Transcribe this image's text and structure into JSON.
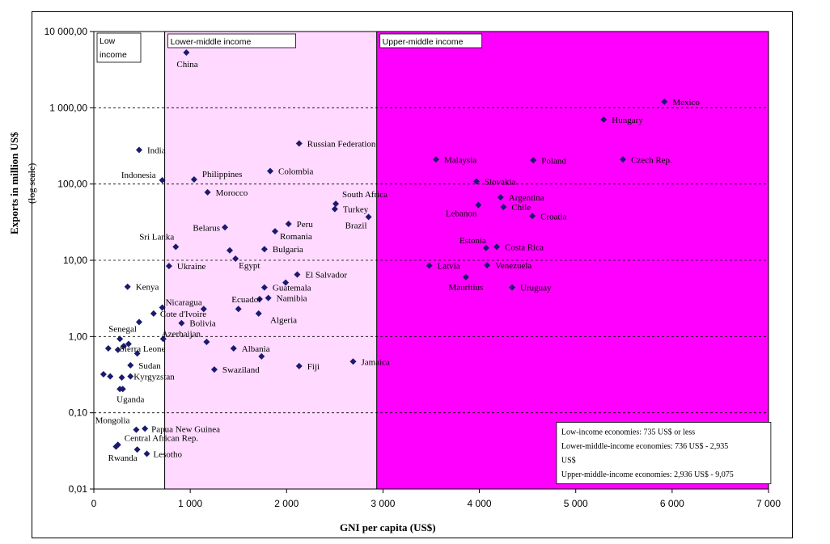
{
  "chart_data": {
    "type": "scatter",
    "title": "",
    "xlabel": "GNI per capita (US$)",
    "ylabel": "Exports in million US$",
    "ylabel_sub": "(log scale)",
    "xlim": [
      0,
      7000
    ],
    "ylim": [
      0.01,
      10000
    ],
    "y_scale": "log",
    "x_ticks": [
      "0",
      "1 000",
      "2 000",
      "3 000",
      "4 000",
      "5 000",
      "6 000",
      "7 000"
    ],
    "y_ticks": [
      "0,01",
      "0,10",
      "1,00",
      "10,00",
      "100,00",
      "1 000,00",
      "10 000,00"
    ],
    "grid": "horizontal dashed",
    "marker_color": "#1a1a6e",
    "regions": [
      {
        "label": "Low income",
        "x0": 0,
        "x1": 735,
        "color": "#ffffff"
      },
      {
        "label": "Lower-middle income",
        "x0": 735,
        "x1": 2935,
        "color": "#ffd9ff"
      },
      {
        "label": "Upper-middle income",
        "x0": 2935,
        "x1": 7000,
        "color": "#ff00ff"
      }
    ],
    "notes": [
      "Low-income economies: 735 US$ or less",
      "Lower-middle-income economies: 736 US$ - 2,935",
      "US$",
      "Upper-middle-income economies: 2,936 US$ - 9,075"
    ],
    "points": [
      {
        "label": "China",
        "x": 960,
        "y": 5300
      },
      {
        "label": "Mexico",
        "x": 5920,
        "y": 1200
      },
      {
        "label": "Hungary",
        "x": 5290,
        "y": 700
      },
      {
        "label": "Russian Federation",
        "x": 2130,
        "y": 340
      },
      {
        "label": "India",
        "x": 470,
        "y": 280
      },
      {
        "label": "Malaysia",
        "x": 3550,
        "y": 210
      },
      {
        "label": "Poland",
        "x": 4560,
        "y": 205
      },
      {
        "label": "Czech Rep.",
        "x": 5490,
        "y": 210
      },
      {
        "label": "Colombia",
        "x": 1830,
        "y": 148
      },
      {
        "label": "Philippines",
        "x": 1040,
        "y": 115
      },
      {
        "label": "Indonesia",
        "x": 710,
        "y": 112
      },
      {
        "label": "Slovakia",
        "x": 3970,
        "y": 108
      },
      {
        "label": "Morocco",
        "x": 1180,
        "y": 78
      },
      {
        "label": "Argentina",
        "x": 4220,
        "y": 67
      },
      {
        "label": "South Africa",
        "x": 2510,
        "y": 55
      },
      {
        "label": "Lebanon",
        "x": 3990,
        "y": 53
      },
      {
        "label": "Chile",
        "x": 4250,
        "y": 50
      },
      {
        "label": "Turkey",
        "x": 2500,
        "y": 47
      },
      {
        "label": "Brazil",
        "x": 2850,
        "y": 37
      },
      {
        "label": "Croatia",
        "x": 4550,
        "y": 38
      },
      {
        "label": "Peru",
        "x": 2020,
        "y": 30
      },
      {
        "label": "Belarus",
        "x": 1360,
        "y": 27
      },
      {
        "label": "Romania",
        "x": 1880,
        "y": 24
      },
      {
        "label": "Sri Lanka",
        "x": 850,
        "y": 15
      },
      {
        "label": "Bulgaria",
        "x": 1770,
        "y": 14
      },
      {
        "label": "Estonia",
        "x": 4070,
        "y": 14.5
      },
      {
        "label": "Costa Rica",
        "x": 4180,
        "y": 15
      },
      {
        "label": "",
        "x": 1410,
        "y": 13.5
      },
      {
        "label": "Egypt",
        "x": 1470,
        "y": 10.5
      },
      {
        "label": "Ukraine",
        "x": 780,
        "y": 8.4
      },
      {
        "label": "Latvia",
        "x": 3480,
        "y": 8.5
      },
      {
        "label": "Venezuela",
        "x": 4080,
        "y": 8.6
      },
      {
        "label": "El Salvador",
        "x": 2110,
        "y": 6.5
      },
      {
        "label": "Mauritius",
        "x": 3860,
        "y": 6.0
      },
      {
        "label": "",
        "x": 1990,
        "y": 5.1
      },
      {
        "label": "Kenya",
        "x": 350,
        "y": 4.5
      },
      {
        "label": "Guatemala",
        "x": 1770,
        "y": 4.4
      },
      {
        "label": "Uruguay",
        "x": 4340,
        "y": 4.4
      },
      {
        "label": "Ecuador",
        "x": 1720,
        "y": 3.1
      },
      {
        "label": "Namibia",
        "x": 1810,
        "y": 3.2
      },
      {
        "label": "Nicaragua",
        "x": 710,
        "y": 2.4
      },
      {
        "label": "",
        "x": 1140,
        "y": 2.3
      },
      {
        "label": "",
        "x": 1500,
        "y": 2.3
      },
      {
        "label": "Cote d'Ivoire",
        "x": 620,
        "y": 2.0
      },
      {
        "label": "",
        "x": 1710,
        "y": 2.0
      },
      {
        "label": "Bolivia",
        "x": 910,
        "y": 1.5
      },
      {
        "label": "",
        "x": 470,
        "y": 1.55
      },
      {
        "label": "Azerbaijan",
        "x": 720,
        "y": 0.93
      },
      {
        "label": "",
        "x": 1170,
        "y": 0.85
      },
      {
        "label": "Senegal",
        "x": 270,
        "y": 0.93
      },
      {
        "label": "",
        "x": 360,
        "y": 0.8
      },
      {
        "label": "Sierra Leone",
        "x": 150,
        "y": 0.7
      },
      {
        "label": "",
        "x": 250,
        "y": 0.67
      },
      {
        "label": "",
        "x": 310,
        "y": 0.75
      },
      {
        "label": "",
        "x": 450,
        "y": 0.6
      },
      {
        "label": "Albania",
        "x": 1450,
        "y": 0.7
      },
      {
        "label": "",
        "x": 1740,
        "y": 0.55
      },
      {
        "label": "Sudan",
        "x": 380,
        "y": 0.42
      },
      {
        "label": "Jamaica",
        "x": 2690,
        "y": 0.47
      },
      {
        "label": "Fiji",
        "x": 2130,
        "y": 0.41
      },
      {
        "label": "Swaziland",
        "x": 1250,
        "y": 0.37
      },
      {
        "label": "",
        "x": 100,
        "y": 0.32
      },
      {
        "label": "",
        "x": 170,
        "y": 0.3
      },
      {
        "label": "",
        "x": 290,
        "y": 0.29
      },
      {
        "label": "Kyrgyzstan",
        "x": 380,
        "y": 0.3
      },
      {
        "label": "Uganda",
        "x": 270,
        "y": 0.205
      },
      {
        "label": "",
        "x": 300,
        "y": 0.205
      },
      {
        "label": "Papua New Guinea",
        "x": 530,
        "y": 0.062
      },
      {
        "label": "Mongolia",
        "x": 440,
        "y": 0.06
      },
      {
        "label": "Central African Rep.",
        "x": 250,
        "y": 0.038
      },
      {
        "label": "",
        "x": 230,
        "y": 0.036
      },
      {
        "label": "Lesotho",
        "x": 550,
        "y": 0.029
      },
      {
        "label": "Rwanda",
        "x": 450,
        "y": 0.033
      }
    ]
  }
}
